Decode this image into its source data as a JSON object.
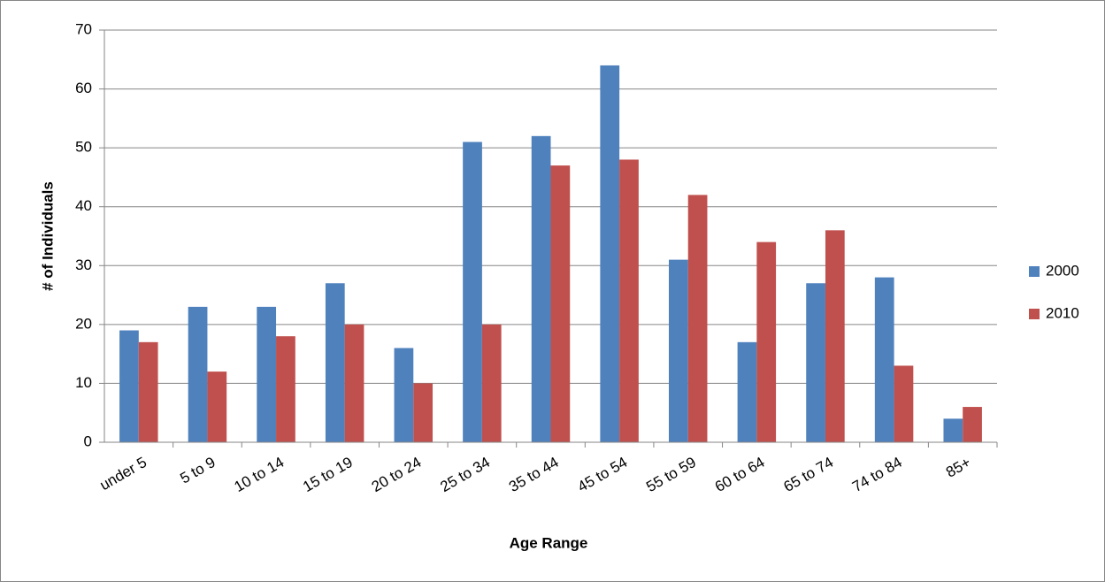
{
  "chart_data": {
    "type": "bar",
    "x_label": "Age Range",
    "y_label": "# of Individuals",
    "categories": [
      "under 5",
      "5 to 9",
      "10 to 14",
      "15 to 19",
      "20 to 24",
      "25 to 34",
      "35 to 44",
      "45 to 54",
      "55 to 59",
      "60 to 64",
      "65 to 74",
      "74 to 84",
      "85+"
    ],
    "series": [
      {
        "name": "2000",
        "color": "#4f81bd",
        "values": [
          19,
          23,
          23,
          27,
          16,
          51,
          52,
          64,
          31,
          17,
          27,
          28,
          4
        ]
      },
      {
        "name": "2010",
        "color": "#c0504d",
        "values": [
          17,
          12,
          18,
          20,
          10,
          20,
          47,
          48,
          42,
          34,
          36,
          13,
          6
        ]
      }
    ],
    "ylim": [
      0,
      70
    ],
    "yticks": [
      0,
      10,
      20,
      30,
      40,
      50,
      60,
      70
    ],
    "grid": true,
    "legend": "right"
  }
}
